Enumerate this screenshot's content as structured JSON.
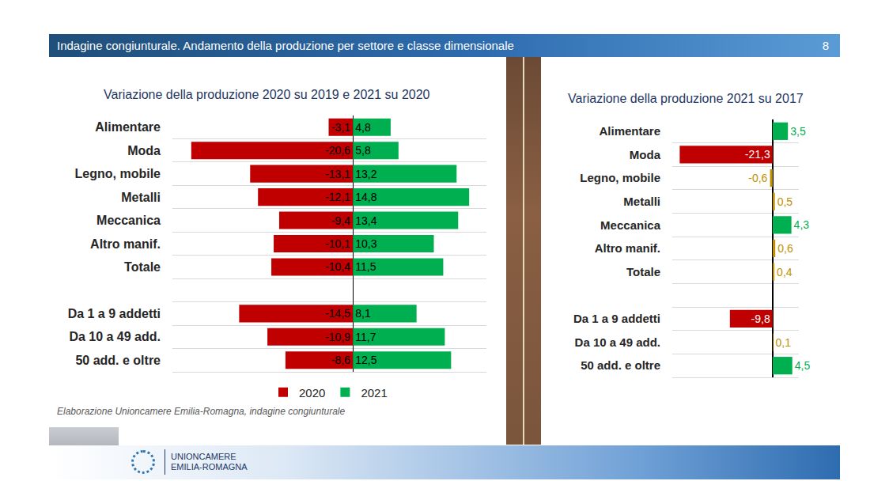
{
  "header": {
    "title": "Indagine congiunturale. Andamento della produzione per settore e classe dimensionale",
    "page": 8
  },
  "source": "Elaborazione Unioncamere Emilia-Romagna, indagine congiunturale",
  "logo": [
    "UNIONCAMERE",
    "EMILIA-ROMAGNA"
  ],
  "chart_data": [
    {
      "type": "bar",
      "title": "Variazione della produzione 2020 su 2019 e 2021 su 2020",
      "orientation": "horizontal",
      "categories": [
        "Alimentare",
        "Moda",
        "Legno, mobile",
        "Metalli",
        "Meccanica",
        "Altro manif.",
        "Totale",
        null,
        "Da 1 a 9 addetti",
        "Da 10 a 49 add.",
        "50 add. e oltre"
      ],
      "series": [
        {
          "name": "2020",
          "color": "#c00000",
          "values": [
            -3.1,
            -20.6,
            -13.1,
            -12.1,
            -9.4,
            -10.1,
            -10.4,
            null,
            -14.5,
            -10.9,
            -8.6
          ],
          "value_labels": [
            "-3,1",
            "-20,6",
            "-13,1",
            "-12,1",
            "-9,4",
            "-10,1",
            "-10,4",
            null,
            "-14,5",
            "-10,9",
            "-8,6"
          ]
        },
        {
          "name": "2021",
          "color": "#00b050",
          "values": [
            4.8,
            5.8,
            13.2,
            14.8,
            13.4,
            10.3,
            11.5,
            null,
            8.1,
            11.7,
            12.5
          ],
          "value_labels": [
            "4,8",
            "5,8",
            "13,2",
            "14,8",
            "13,4",
            "10,3",
            "11,5",
            null,
            "8,1",
            "11,7",
            "12,5"
          ]
        }
      ],
      "xlim": [
        -23,
        17
      ],
      "xticks": [],
      "tick_labels": "y",
      "grid": true,
      "legend": "bottom",
      "data_labels": true
    },
    {
      "type": "bar",
      "title": "Variazione della produzione 2021 su 2017",
      "orientation": "horizontal",
      "categories": [
        "Alimentare",
        "Moda",
        "Legno, mobile",
        "Metalli",
        "Meccanica",
        "Altro manif.",
        "Totale",
        null,
        "Da 1 a 9 addetti",
        "Da 10 a 49 add.",
        "50 add. e oltre"
      ],
      "values": [
        3.5,
        -21.3,
        -0.6,
        0.5,
        4.3,
        0.6,
        0.4,
        null,
        -9.8,
        0.1,
        4.5
      ],
      "value_labels": [
        "3,5",
        "-21,3",
        "-0,6",
        "0,5",
        "4,3",
        "0,6",
        "0,4",
        null,
        "-9,8",
        "0,1",
        "4,5"
      ],
      "colors": [
        "#00b050",
        "#c00000",
        "#bf9000",
        "#bf9000",
        "#00b050",
        "#bf9000",
        "#bf9000",
        null,
        "#c00000",
        "#bf9000",
        "#00b050"
      ],
      "xlim": [
        -23,
        6
      ],
      "xticks": [],
      "tick_labels": "y",
      "grid": true,
      "data_labels": true
    }
  ]
}
